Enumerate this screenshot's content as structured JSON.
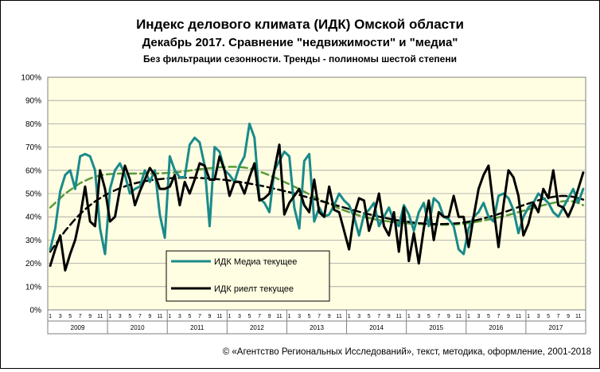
{
  "chart_data": {
    "type": "line",
    "title": "Индекс делового климата (ИДК) Омской области",
    "subtitle": "Декабрь 2017. Сравнение \"недвижимости\"  и \"медиа\"",
    "note": "Без фильтрации  сезонности. Тренды  - полиномы  шестой степени",
    "ylabel": "",
    "xlabel": "",
    "ylim": [
      0,
      100
    ],
    "y_ticks": [
      "0%",
      "10%",
      "20%",
      "30%",
      "40%",
      "50%",
      "60%",
      "70%",
      "80%",
      "90%",
      "100%"
    ],
    "years": [
      "2009",
      "2010",
      "2011",
      "2012",
      "2013",
      "2014",
      "2015",
      "2016",
      "2017"
    ],
    "month_ticks": [
      "1",
      "3",
      "5",
      "7",
      "9",
      "11"
    ],
    "grid": true,
    "legend_placement": "bottom-left",
    "series": [
      {
        "name": "ИДК Медиа текущее",
        "color": "#1a8a8a",
        "values": [
          26,
          35,
          51,
          58,
          60,
          52,
          66,
          67,
          66,
          60,
          35,
          24,
          52,
          60,
          63,
          58,
          50,
          52,
          53,
          60,
          55,
          60,
          41,
          31,
          66,
          60,
          57,
          57,
          71,
          74,
          72,
          62,
          36,
          70,
          68,
          60,
          58,
          55,
          62,
          66,
          80,
          74,
          48,
          46,
          42,
          60,
          64,
          68,
          66,
          44,
          35,
          64,
          67,
          38,
          44,
          40,
          41,
          45,
          50,
          47,
          45,
          40,
          32,
          41,
          43,
          46,
          36,
          40,
          44,
          38,
          36,
          45,
          41,
          34,
          42,
          46,
          36,
          48,
          46,
          40,
          39,
          36,
          26,
          24,
          35,
          40,
          42,
          46,
          40,
          38,
          49,
          50,
          48,
          43,
          33,
          40,
          44,
          46,
          50,
          48,
          46,
          42,
          40,
          44,
          48,
          52,
          46,
          52
        ]
      },
      {
        "name": "ИДК риелт текущее",
        "color": "#000000",
        "values": [
          19,
          26,
          32,
          17,
          24,
          30,
          40,
          53,
          38,
          36,
          60,
          52,
          38,
          40,
          52,
          62,
          56,
          45,
          51,
          56,
          61,
          58,
          52,
          52,
          53,
          58,
          45,
          55,
          50,
          56,
          63,
          62,
          56,
          56,
          66,
          60,
          49,
          55,
          55,
          50,
          57,
          63,
          47,
          48,
          50,
          60,
          71,
          41,
          46,
          49,
          52,
          45,
          42,
          56,
          42,
          40,
          53,
          43,
          42,
          34,
          26,
          41,
          48,
          47,
          34,
          41,
          50,
          36,
          32,
          42,
          25,
          44,
          21,
          33,
          20,
          35,
          47,
          30,
          42,
          40,
          40,
          49,
          40,
          40,
          27,
          40,
          52,
          58,
          62,
          44,
          27,
          45,
          60,
          57,
          49,
          32,
          37,
          46,
          42,
          52,
          48,
          60,
          45,
          44,
          40,
          45,
          52,
          59
        ]
      },
      {
        "name": "",
        "color": "#5a9a3a",
        "dashed": true,
        "trend_of": "ИДК Медиа текущее",
        "values": [
          44,
          46,
          48,
          50,
          51.5,
          53,
          54.5,
          55.5,
          56.5,
          57.2,
          57.8,
          58.2,
          58.4,
          58.5,
          58.6,
          58.6,
          58.6,
          58.6,
          58.6,
          58.6,
          58.6,
          58.6,
          58.7,
          58.8,
          58.9,
          59.1,
          59.3,
          59.6,
          59.9,
          60.2,
          60.5,
          60.7,
          60.9,
          61.1,
          61.3,
          61.4,
          61.5,
          61.5,
          61.4,
          61.2,
          60.8,
          60.2,
          59.5,
          58.7,
          57.9,
          57.0,
          56.0,
          55.0,
          54.0,
          53.0,
          51.9,
          50.8,
          49.7,
          48.6,
          47.5,
          46.5,
          45.5,
          44.5,
          43.6,
          42.8,
          42.0,
          41.3,
          40.6,
          40.0,
          39.5,
          39.0,
          38.6,
          38.3,
          38.0,
          37.7,
          37.5,
          37.3,
          37.1,
          37.0,
          36.9,
          36.8,
          36.7,
          36.6,
          36.6,
          36.6,
          36.6,
          36.7,
          36.8,
          37.0,
          37.3,
          37.6,
          38.0,
          38.4,
          38.8,
          39.3,
          39.8,
          40.3,
          40.8,
          41.4,
          42.0,
          42.6,
          43.2,
          43.8,
          44.4,
          45.0,
          45.5,
          46.0,
          46.4,
          46.7,
          46.8,
          46.6,
          46.0,
          45.0
        ]
      },
      {
        "name": "",
        "color": "#000000",
        "dashed": true,
        "trend_of": "ИДК риелт текущее",
        "values": [
          25,
          28,
          31,
          34,
          36.5,
          39,
          41.2,
          43.2,
          45,
          46.6,
          48,
          49.3,
          50.4,
          51.4,
          52.3,
          53.1,
          53.8,
          54.4,
          54.9,
          55.3,
          55.7,
          56.0,
          56.2,
          56.4,
          56.6,
          56.7,
          56.8,
          56.8,
          56.8,
          56.8,
          56.7,
          56.6,
          56.5,
          56.3,
          56.1,
          55.9,
          55.6,
          55.3,
          55.0,
          54.7,
          54.3,
          53.9,
          53.5,
          53.1,
          52.6,
          52.1,
          51.6,
          51.1,
          50.6,
          50.0,
          49.4,
          48.8,
          48.2,
          47.6,
          47.0,
          46.4,
          45.8,
          45.2,
          44.6,
          44.0,
          43.4,
          42.8,
          42.2,
          41.6,
          41.1,
          40.6,
          40.1,
          39.6,
          39.2,
          38.8,
          38.4,
          38.1,
          37.8,
          37.5,
          37.3,
          37.1,
          37.0,
          36.9,
          36.9,
          36.9,
          37.0,
          37.1,
          37.3,
          37.6,
          37.9,
          38.3,
          38.8,
          39.3,
          39.9,
          40.5,
          41.2,
          41.9,
          42.6,
          43.4,
          44.2,
          45.0,
          45.7,
          46.4,
          47.1,
          47.7,
          48.2,
          48.6,
          48.9,
          49.0,
          48.9,
          48.6,
          48.1,
          47.4
        ]
      }
    ],
    "footer": "© «Агентство Региональных Исследований», текст, методика, оформление, 2001-2018"
  }
}
